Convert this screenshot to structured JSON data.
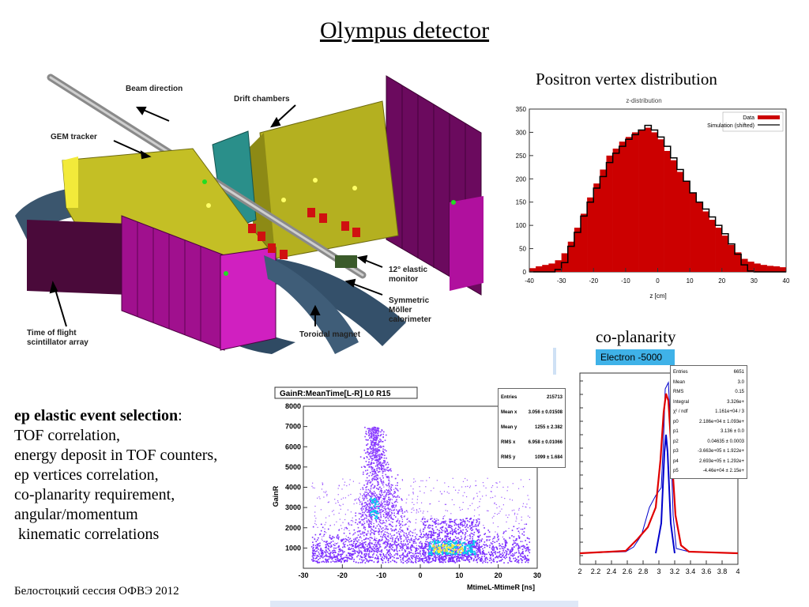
{
  "slide": {
    "title": "Olympus detector",
    "footer": "Белостоцкий сессия ОФВЭ 2012"
  },
  "detector": {
    "labels": {
      "beam": "Beam direction",
      "drift": "Drift chambers",
      "gem": "GEM tracker",
      "elastic": [
        "12° elastic",
        "monitor"
      ],
      "moller": [
        "Symmetric",
        "Möller",
        "calorimeter"
      ],
      "tof": [
        "Time of flight",
        "scintillator array"
      ],
      "toroid": "Toroidal magnet"
    }
  },
  "captions": {
    "vertex": "Positron vertex distribution",
    "coplanarity": "co-planarity",
    "electron_badge": "Electron -5000"
  },
  "selection": {
    "heading": "ep elastic event selection",
    "colon": ":",
    "lines": [
      "TOF correlation,",
      "energy deposit in TOF counters,",
      "ep vertices correlation,",
      "co-planarity requirement,",
      "angular/momentum",
      " kinematic correlations"
    ]
  },
  "chart_data": [
    {
      "type": "bar",
      "title": "z-distribution",
      "xlabel": "z [cm]",
      "ylabel": "",
      "xlim": [
        -40,
        40
      ],
      "ylim": [
        0,
        350
      ],
      "xticks": [
        -40,
        -30,
        -20,
        -10,
        0,
        10,
        20,
        30,
        40
      ],
      "yticks": [
        0,
        50,
        100,
        150,
        200,
        250,
        300,
        350
      ],
      "legend": "top-right",
      "series": [
        {
          "name": "Data",
          "color": "#cc0000",
          "x": [
            -40,
            -38,
            -36,
            -34,
            -32,
            -30,
            -28,
            -26,
            -24,
            -22,
            -20,
            -18,
            -16,
            -14,
            -12,
            -10,
            -8,
            -6,
            -4,
            -2,
            0,
            2,
            4,
            6,
            8,
            10,
            12,
            14,
            16,
            18,
            20,
            22,
            24,
            26,
            28,
            30,
            32,
            34,
            36,
            38
          ],
          "values": [
            8,
            12,
            15,
            18,
            25,
            40,
            65,
            95,
            125,
            160,
            190,
            220,
            250,
            265,
            280,
            290,
            300,
            305,
            310,
            300,
            285,
            260,
            240,
            215,
            195,
            170,
            150,
            130,
            112,
            95,
            78,
            58,
            42,
            28,
            22,
            18,
            15,
            13,
            12,
            10
          ]
        },
        {
          "name": "Simulation (shifted)",
          "color": "#000000",
          "x": [
            -40,
            -38,
            -36,
            -34,
            -32,
            -30,
            -28,
            -26,
            -24,
            -22,
            -20,
            -18,
            -16,
            -14,
            -12,
            -10,
            -8,
            -6,
            -4,
            -2,
            0,
            2,
            4,
            6,
            8,
            10,
            12,
            14,
            16,
            18,
            20,
            22,
            24,
            26,
            28,
            30,
            32,
            34,
            36,
            38
          ],
          "values": [
            0,
            0,
            0,
            0,
            5,
            20,
            55,
            85,
            120,
            150,
            180,
            205,
            235,
            255,
            270,
            285,
            295,
            305,
            315,
            305,
            290,
            270,
            245,
            220,
            195,
            170,
            150,
            135,
            118,
            100,
            82,
            60,
            38,
            15,
            2,
            0,
            0,
            0,
            0,
            0
          ]
        }
      ]
    },
    {
      "type": "scatter",
      "title": "GainR:MeanTime[L-R] L0 R15",
      "xlabel": "MtimeL-MtimeR [ns]",
      "ylabel": "GainR",
      "xlim": [
        -30,
        30
      ],
      "ylim": [
        0,
        8000
      ],
      "xticks": [
        -30,
        -20,
        -10,
        0,
        10,
        20,
        30
      ],
      "yticks": [
        1000,
        2000,
        3000,
        4000,
        5000,
        6000,
        7000,
        8000
      ],
      "stats": [
        {
          "label": "Entries",
          "value": "215713"
        },
        {
          "label": "Mean x",
          "value": "3.056 ± 0.01508"
        },
        {
          "label": "Mean y",
          "value": "1255 ± 2.382"
        },
        {
          "label": "RMS x",
          "value": "6.958 ± 0.01066"
        },
        {
          "label": "RMS y",
          "value": "1099 ± 1.684"
        }
      ]
    },
    {
      "type": "line",
      "title": "",
      "xlabel": "",
      "ylabel": "",
      "xlim": [
        2,
        4
      ],
      "xticks": [
        "2",
        "2.2",
        "2.4",
        "2.6",
        "2.8",
        "3",
        "3.2",
        "3.4",
        "3.6",
        "3.8",
        "4"
      ],
      "stats": [
        {
          "label": "Entries",
          "value": "6651"
        },
        {
          "label": "Mean",
          "value": "3.0"
        },
        {
          "label": "RMS",
          "value": "0.15"
        },
        {
          "label": "Integral",
          "value": "3.326e+"
        },
        {
          "label": "χ² / ndf",
          "value": "1.161e+04 / 3"
        },
        {
          "label": "p0",
          "value": "2.186e+04 ± 1.093e+"
        },
        {
          "label": "p1",
          "value": "3.136 ± 0.0"
        },
        {
          "label": "p2",
          "value": "0.04635 ± 0.0003"
        },
        {
          "label": "p3",
          "value": "-3.663e+05 ± 1.922e+"
        },
        {
          "label": "p4",
          "value": "2.693e+05 ± 1.292e+"
        },
        {
          "label": "p5",
          "value": "-4.46e+04 ± 2.15e+"
        }
      ]
    }
  ]
}
